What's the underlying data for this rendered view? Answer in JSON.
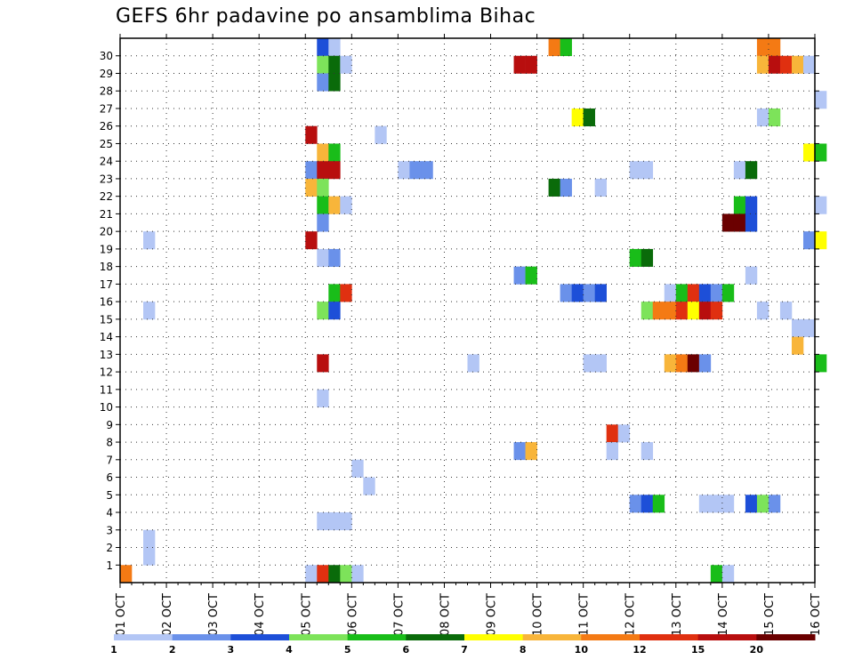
{
  "chart_data": {
    "type": "heatmap",
    "title": "GEFS 6hr padavine po ansamblima Bihac",
    "xlabel": "",
    "ylabel": "",
    "x_tick_labels": [
      "01 OCT",
      "02 OCT",
      "03 OCT",
      "04 OCT",
      "05 OCT",
      "06 OCT",
      "07 OCT",
      "08 OCT",
      "09 OCT",
      "10 OCT",
      "11 OCT",
      "12 OCT",
      "13 OCT",
      "14 OCT",
      "15 OCT",
      "16 OCT"
    ],
    "y_tick_labels": [
      "1",
      "2",
      "3",
      "4",
      "5",
      "6",
      "7",
      "8",
      "9",
      "10",
      "11",
      "12",
      "13",
      "14",
      "15",
      "16",
      "17",
      "18",
      "19",
      "20",
      "21",
      "22",
      "23",
      "24",
      "25",
      "26",
      "27",
      "28",
      "29",
      "30"
    ],
    "x_range_days": [
      0,
      15
    ],
    "y_range_members": [
      0,
      30
    ],
    "time_step_hours": 6,
    "grid": true,
    "colorbar": {
      "position": "bottom",
      "labels": [
        "1",
        "2",
        "3",
        "4",
        "5",
        "6",
        "7",
        "8",
        "10",
        "12",
        "15",
        "20"
      ],
      "colors": [
        "#b3c6f5",
        "#6a91ea",
        "#1d4fd8",
        "#7de35a",
        "#19bd19",
        "#0a6b0a",
        "#ffff00",
        "#f8b53a",
        "#f47a14",
        "#e03010",
        "#b80e0e",
        "#6b0000"
      ]
    },
    "levels": {
      "lb": "#b3c6f5",
      "mb": "#6a91ea",
      "db": "#1d4fd8",
      "lg": "#7de35a",
      "mg": "#19bd19",
      "dg": "#0a6b0a",
      "ye": "#ffff00",
      "lo": "#f8b53a",
      "or": "#f47a14",
      "rd": "#e03010",
      "dr": "#b80e0e",
      "mr": "#6b0000"
    },
    "cells": [
      {
        "m": 30,
        "d": 4.25,
        "n": 1,
        "c": "db"
      },
      {
        "m": 30,
        "d": 4.5,
        "n": 1,
        "c": "lb"
      },
      {
        "m": 30,
        "d": 9.25,
        "n": 1,
        "c": "or"
      },
      {
        "m": 30,
        "d": 9.5,
        "n": 1,
        "c": "mg"
      },
      {
        "m": 30,
        "d": 13.75,
        "n": 2,
        "c": "or"
      },
      {
        "m": 29,
        "d": 4.25,
        "n": 1,
        "c": "lg"
      },
      {
        "m": 29,
        "d": 4.5,
        "n": 1,
        "c": "dg"
      },
      {
        "m": 29,
        "d": 4.75,
        "n": 1,
        "c": "lb"
      },
      {
        "m": 29,
        "d": 8.5,
        "n": 2,
        "c": "dr"
      },
      {
        "m": 29,
        "d": 13.75,
        "n": 1,
        "c": "lo"
      },
      {
        "m": 29,
        "d": 14.0,
        "n": 1,
        "c": "dr"
      },
      {
        "m": 29,
        "d": 14.25,
        "n": 1,
        "c": "rd"
      },
      {
        "m": 29,
        "d": 14.5,
        "n": 1,
        "c": "lo"
      },
      {
        "m": 29,
        "d": 14.75,
        "n": 1,
        "c": "lb"
      },
      {
        "m": 28,
        "d": 4.25,
        "n": 1,
        "c": "mb"
      },
      {
        "m": 28,
        "d": 4.5,
        "n": 1,
        "c": "dg"
      },
      {
        "m": 27,
        "d": 15.0,
        "n": 1,
        "c": "lb"
      },
      {
        "m": 26,
        "d": 9.75,
        "n": 1,
        "c": "ye"
      },
      {
        "m": 26,
        "d": 10.0,
        "n": 1,
        "c": "dg"
      },
      {
        "m": 26,
        "d": 13.75,
        "n": 1,
        "c": "lb"
      },
      {
        "m": 26,
        "d": 14.0,
        "n": 1,
        "c": "lg"
      },
      {
        "m": 25,
        "d": 4.0,
        "n": 1,
        "c": "dr"
      },
      {
        "m": 25,
        "d": 5.5,
        "n": 1,
        "c": "lb"
      },
      {
        "m": 24,
        "d": 4.25,
        "n": 1,
        "c": "lo"
      },
      {
        "m": 24,
        "d": 4.5,
        "n": 1,
        "c": "mg"
      },
      {
        "m": 24,
        "d": 14.75,
        "n": 1,
        "c": "ye"
      },
      {
        "m": 24,
        "d": 15.0,
        "n": 1,
        "c": "mg"
      },
      {
        "m": 23,
        "d": 4.0,
        "n": 1,
        "c": "mb"
      },
      {
        "m": 23,
        "d": 4.25,
        "n": 2,
        "c": "dr"
      },
      {
        "m": 23,
        "d": 6.0,
        "n": 1,
        "c": "lb"
      },
      {
        "m": 23,
        "d": 6.25,
        "n": 2,
        "c": "mb"
      },
      {
        "m": 23,
        "d": 11.0,
        "n": 2,
        "c": "lb"
      },
      {
        "m": 23,
        "d": 13.25,
        "n": 1,
        "c": "lb"
      },
      {
        "m": 23,
        "d": 13.5,
        "n": 1,
        "c": "dg"
      },
      {
        "m": 22,
        "d": 4.0,
        "n": 1,
        "c": "lo"
      },
      {
        "m": 22,
        "d": 4.25,
        "n": 1,
        "c": "lg"
      },
      {
        "m": 22,
        "d": 9.25,
        "n": 1,
        "c": "dg"
      },
      {
        "m": 22,
        "d": 9.5,
        "n": 1,
        "c": "mb"
      },
      {
        "m": 22,
        "d": 10.25,
        "n": 1,
        "c": "lb"
      },
      {
        "m": 21,
        "d": 4.25,
        "n": 1,
        "c": "mg"
      },
      {
        "m": 21,
        "d": 4.5,
        "n": 1,
        "c": "lo"
      },
      {
        "m": 21,
        "d": 4.75,
        "n": 1,
        "c": "lb"
      },
      {
        "m": 21,
        "d": 13.25,
        "n": 1,
        "c": "mg"
      },
      {
        "m": 21,
        "d": 13.5,
        "n": 1,
        "c": "db"
      },
      {
        "m": 21,
        "d": 15.0,
        "n": 1,
        "c": "lb"
      },
      {
        "m": 20,
        "d": 4.25,
        "n": 1,
        "c": "mb"
      },
      {
        "m": 20,
        "d": 13.0,
        "n": 2,
        "c": "mr"
      },
      {
        "m": 20,
        "d": 13.5,
        "n": 1,
        "c": "db"
      },
      {
        "m": 19,
        "d": 0.5,
        "n": 1,
        "c": "lb"
      },
      {
        "m": 19,
        "d": 4.0,
        "n": 1,
        "c": "dr"
      },
      {
        "m": 19,
        "d": 14.75,
        "n": 1,
        "c": "mb"
      },
      {
        "m": 19,
        "d": 15.0,
        "n": 1,
        "c": "ye"
      },
      {
        "m": 18,
        "d": 4.25,
        "n": 1,
        "c": "lb"
      },
      {
        "m": 18,
        "d": 4.5,
        "n": 1,
        "c": "mb"
      },
      {
        "m": 18,
        "d": 11.0,
        "n": 1,
        "c": "mg"
      },
      {
        "m": 18,
        "d": 11.25,
        "n": 1,
        "c": "dg"
      },
      {
        "m": 17,
        "d": 8.5,
        "n": 1,
        "c": "mb"
      },
      {
        "m": 17,
        "d": 8.75,
        "n": 1,
        "c": "mg"
      },
      {
        "m": 17,
        "d": 13.5,
        "n": 1,
        "c": "lb"
      },
      {
        "m": 16,
        "d": 4.5,
        "n": 1,
        "c": "mg"
      },
      {
        "m": 16,
        "d": 4.75,
        "n": 1,
        "c": "rd"
      },
      {
        "m": 16,
        "d": 9.5,
        "n": 1,
        "c": "mb"
      },
      {
        "m": 16,
        "d": 9.75,
        "n": 1,
        "c": "db"
      },
      {
        "m": 16,
        "d": 10.0,
        "n": 1,
        "c": "mb"
      },
      {
        "m": 16,
        "d": 10.25,
        "n": 1,
        "c": "db"
      },
      {
        "m": 16,
        "d": 11.75,
        "n": 1,
        "c": "lb"
      },
      {
        "m": 16,
        "d": 12.0,
        "n": 1,
        "c": "mg"
      },
      {
        "m": 16,
        "d": 12.25,
        "n": 1,
        "c": "rd"
      },
      {
        "m": 16,
        "d": 12.5,
        "n": 1,
        "c": "db"
      },
      {
        "m": 16,
        "d": 12.75,
        "n": 1,
        "c": "mb"
      },
      {
        "m": 16,
        "d": 13.0,
        "n": 1,
        "c": "mg"
      },
      {
        "m": 15,
        "d": 0.5,
        "n": 1,
        "c": "lb"
      },
      {
        "m": 15,
        "d": 4.25,
        "n": 1,
        "c": "lg"
      },
      {
        "m": 15,
        "d": 4.5,
        "n": 1,
        "c": "db"
      },
      {
        "m": 15,
        "d": 11.25,
        "n": 1,
        "c": "lg"
      },
      {
        "m": 15,
        "d": 11.5,
        "n": 2,
        "c": "or"
      },
      {
        "m": 15,
        "d": 12.0,
        "n": 1,
        "c": "rd"
      },
      {
        "m": 15,
        "d": 12.25,
        "n": 1,
        "c": "ye"
      },
      {
        "m": 15,
        "d": 12.5,
        "n": 1,
        "c": "dr"
      },
      {
        "m": 15,
        "d": 12.75,
        "n": 1,
        "c": "rd"
      },
      {
        "m": 15,
        "d": 13.75,
        "n": 1,
        "c": "lb"
      },
      {
        "m": 15,
        "d": 14.25,
        "n": 1,
        "c": "lb"
      },
      {
        "m": 14,
        "d": 14.5,
        "n": 2,
        "c": "lb"
      },
      {
        "m": 13,
        "d": 14.5,
        "n": 1,
        "c": "lo"
      },
      {
        "m": 12,
        "d": 4.25,
        "n": 1,
        "c": "dr"
      },
      {
        "m": 12,
        "d": 7.5,
        "n": 1,
        "c": "lb"
      },
      {
        "m": 12,
        "d": 10.0,
        "n": 2,
        "c": "lb"
      },
      {
        "m": 12,
        "d": 11.75,
        "n": 1,
        "c": "lo"
      },
      {
        "m": 12,
        "d": 12.0,
        "n": 1,
        "c": "or"
      },
      {
        "m": 12,
        "d": 12.25,
        "n": 1,
        "c": "mr"
      },
      {
        "m": 12,
        "d": 12.5,
        "n": 1,
        "c": "mb"
      },
      {
        "m": 12,
        "d": 15.0,
        "n": 1,
        "c": "mg"
      },
      {
        "m": 10,
        "d": 4.25,
        "n": 1,
        "c": "lb"
      },
      {
        "m": 8,
        "d": 10.5,
        "n": 1,
        "c": "rd"
      },
      {
        "m": 8,
        "d": 10.75,
        "n": 1,
        "c": "lb"
      },
      {
        "m": 7,
        "d": 8.5,
        "n": 1,
        "c": "mb"
      },
      {
        "m": 7,
        "d": 8.75,
        "n": 1,
        "c": "lo"
      },
      {
        "m": 7,
        "d": 10.5,
        "n": 1,
        "c": "lb"
      },
      {
        "m": 7,
        "d": 11.25,
        "n": 1,
        "c": "lb"
      },
      {
        "m": 6,
        "d": 5.0,
        "n": 1,
        "c": "lb"
      },
      {
        "m": 5,
        "d": 5.25,
        "n": 1,
        "c": "lb"
      },
      {
        "m": 4,
        "d": 11.0,
        "n": 1,
        "c": "mb"
      },
      {
        "m": 4,
        "d": 11.25,
        "n": 1,
        "c": "db"
      },
      {
        "m": 4,
        "d": 11.5,
        "n": 1,
        "c": "mg"
      },
      {
        "m": 4,
        "d": 12.5,
        "n": 2,
        "c": "lb"
      },
      {
        "m": 4,
        "d": 13.0,
        "n": 1,
        "c": "lb"
      },
      {
        "m": 4,
        "d": 13.5,
        "n": 1,
        "c": "db"
      },
      {
        "m": 4,
        "d": 13.75,
        "n": 1,
        "c": "lg"
      },
      {
        "m": 4,
        "d": 14.0,
        "n": 1,
        "c": "mb"
      },
      {
        "m": 3,
        "d": 4.25,
        "n": 3,
        "c": "lb"
      },
      {
        "m": 2,
        "d": 0.5,
        "n": 1,
        "c": "lb"
      },
      {
        "m": 1,
        "d": 0.5,
        "n": 1,
        "c": "lb"
      },
      {
        "m": 0,
        "d": 0.0,
        "n": 1,
        "c": "or"
      },
      {
        "m": 0,
        "d": 4.0,
        "n": 1,
        "c": "lb"
      },
      {
        "m": 0,
        "d": 4.25,
        "n": 1,
        "c": "rd"
      },
      {
        "m": 0,
        "d": 4.5,
        "n": 1,
        "c": "dg"
      },
      {
        "m": 0,
        "d": 4.75,
        "n": 1,
        "c": "lg"
      },
      {
        "m": 0,
        "d": 5.0,
        "n": 1,
        "c": "lb"
      },
      {
        "m": 0,
        "d": 12.75,
        "n": 1,
        "c": "mg"
      },
      {
        "m": 0,
        "d": 13.0,
        "n": 1,
        "c": "lb"
      }
    ]
  }
}
